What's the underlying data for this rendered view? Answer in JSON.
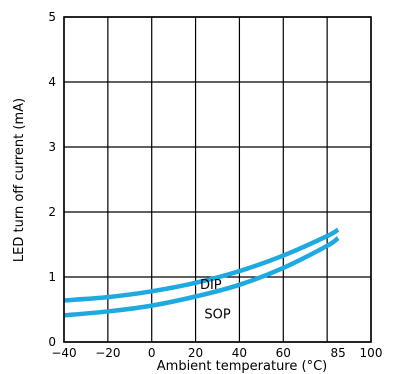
{
  "chart_data": {
    "type": "line",
    "title": "",
    "xlabel": "Ambient temperature (°C)",
    "ylabel": "LED turn off current (mA)",
    "xlim": [
      -40,
      100
    ],
    "ylim": [
      0,
      5
    ],
    "grid": true,
    "legend": "none",
    "x_ticks": [
      -40,
      -20,
      0,
      20,
      40,
      60,
      85,
      100
    ],
    "y_ticks": [
      0,
      1,
      2,
      3,
      4,
      5
    ],
    "x_tick_labels": [
      "−40",
      "−20",
      "0",
      "20",
      "40",
      "60",
      "85",
      "100"
    ],
    "y_tick_labels": [
      "0",
      "1",
      "2",
      "3",
      "4",
      "5"
    ],
    "series": [
      {
        "name": "DIP",
        "x": [
          -40,
          -20,
          0,
          20,
          40,
          60,
          80,
          85
        ],
        "y": [
          0.64,
          0.69,
          0.78,
          0.91,
          1.09,
          1.33,
          1.63,
          1.73
        ],
        "color": "#1fa9e1"
      },
      {
        "name": "SOP",
        "x": [
          -40,
          -20,
          0,
          20,
          40,
          60,
          80,
          85
        ],
        "y": [
          0.41,
          0.47,
          0.56,
          0.7,
          0.88,
          1.14,
          1.48,
          1.6
        ],
        "color": "#1fa9e1"
      }
    ]
  }
}
